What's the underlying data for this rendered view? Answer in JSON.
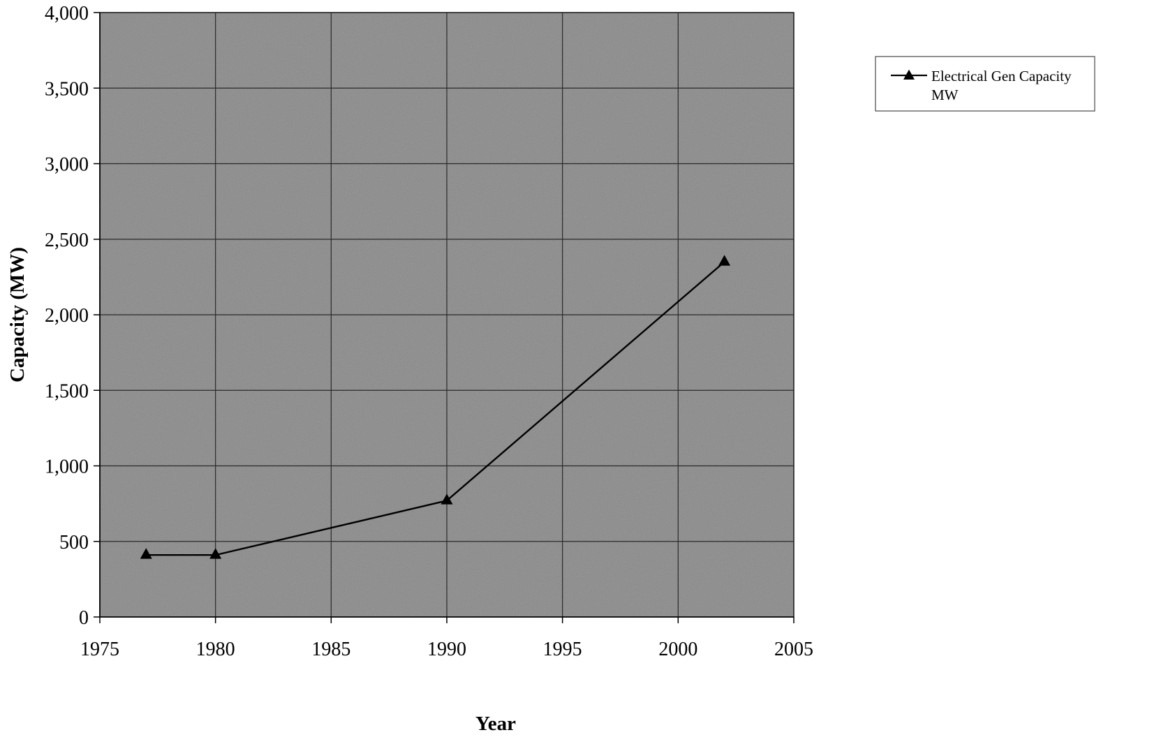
{
  "chart_data": {
    "type": "line",
    "title": "",
    "xlabel": "Year",
    "ylabel": "Capacity (MW)",
    "xlim": [
      1975,
      2005
    ],
    "ylim": [
      0,
      4000
    ],
    "x_ticks": [
      1975,
      1980,
      1985,
      1990,
      1995,
      2000,
      2005
    ],
    "x_tick_labels": [
      "1975",
      "1980",
      "1985",
      "1990",
      "1995",
      "2000",
      "2005"
    ],
    "y_ticks": [
      0,
      500,
      1000,
      1500,
      2000,
      2500,
      3000,
      3500,
      4000
    ],
    "y_tick_labels": [
      "0",
      "500",
      "1,000",
      "1,500",
      "2,000",
      "2,500",
      "3,000",
      "3,500",
      "4,000"
    ],
    "grid": true,
    "legend_position": "top-right, outside plot area",
    "series": [
      {
        "name": "Electrical Gen Capacity MW",
        "legend_label_lines": [
          "Electrical Gen Capacity",
          "MW"
        ],
        "marker": "triangle",
        "color": "#000000",
        "x": [
          1977,
          1980,
          1990,
          2002
        ],
        "y": [
          410,
          410,
          770,
          2350
        ]
      }
    ],
    "colors": {
      "plot_background": "#9a9a9a",
      "grid": "#2a2a2a",
      "line": "#000000",
      "legend_border": "#555555"
    }
  }
}
